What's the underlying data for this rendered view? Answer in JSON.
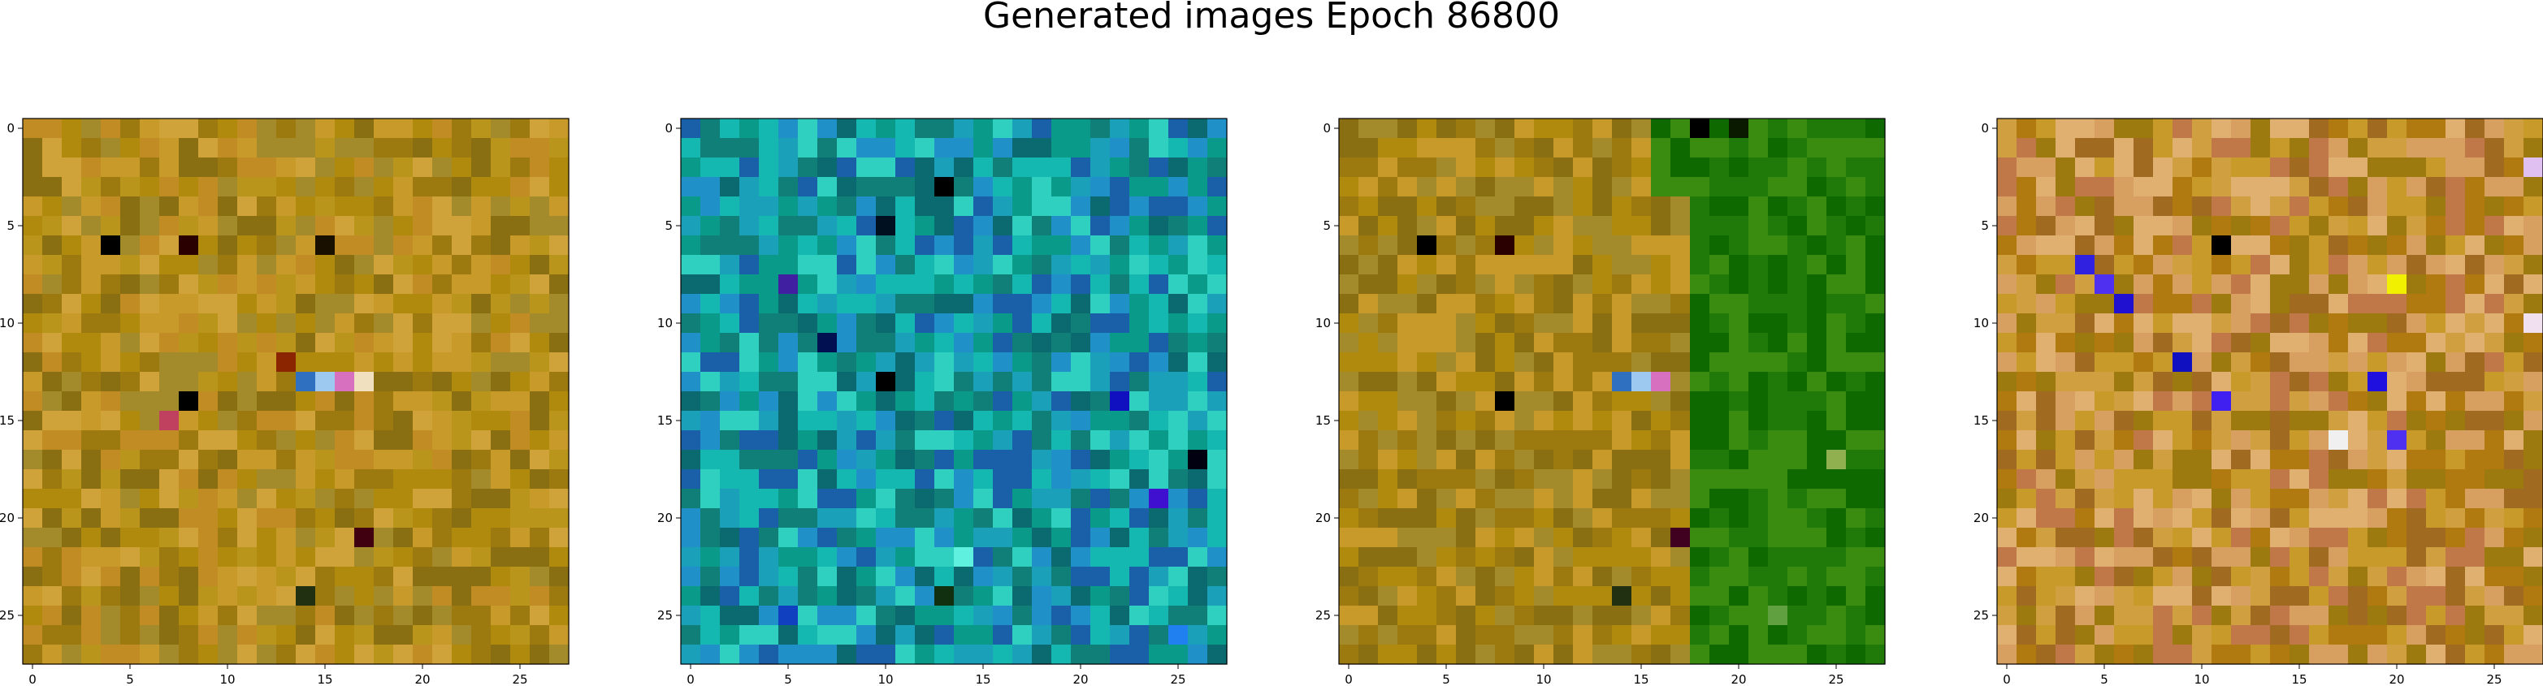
{
  "figure": {
    "title": "Generated images Epoch 86800"
  },
  "chart_data": [
    {
      "type": "heatmap",
      "grid": [
        28,
        28
      ],
      "xticks": [
        "0",
        "5",
        "10",
        "15",
        "20",
        "25"
      ],
      "yticks": [
        "0",
        "5",
        "10",
        "15",
        "20",
        "25"
      ],
      "xlim": [
        -0.5,
        27.5
      ],
      "ylim": [
        27.5,
        -0.5
      ],
      "palette": [
        "#b08a0c",
        "#9c7a10",
        "#c89a2a",
        "#a38a2a",
        "#d0a33a",
        "#8a6e12",
        "#b9951c",
        "#c18c24"
      ],
      "accents": [
        {
          "r": 6,
          "c": 4,
          "color": "#000000"
        },
        {
          "r": 6,
          "c": 8,
          "color": "#2a0000"
        },
        {
          "r": 6,
          "c": 15,
          "color": "#1a1000"
        },
        {
          "r": 12,
          "c": 13,
          "color": "#8b2500"
        },
        {
          "r": 13,
          "c": 14,
          "color": "#3070c0"
        },
        {
          "r": 13,
          "c": 15,
          "color": "#9dc8f0"
        },
        {
          "r": 13,
          "c": 16,
          "color": "#d870c0"
        },
        {
          "r": 13,
          "c": 17,
          "color": "#f0e0c0"
        },
        {
          "r": 14,
          "c": 8,
          "color": "#000000"
        },
        {
          "r": 15,
          "c": 7,
          "color": "#c04060"
        },
        {
          "r": 21,
          "c": 17,
          "color": "#400010"
        },
        {
          "r": 24,
          "c": 14,
          "color": "#203010"
        }
      ]
    },
    {
      "type": "heatmap",
      "grid": [
        28,
        28
      ],
      "xticks": [
        "0",
        "5",
        "10",
        "15",
        "20",
        "25"
      ],
      "yticks": [
        "0",
        "5",
        "10",
        "15",
        "20",
        "25"
      ],
      "xlim": [
        -0.5,
        27.5
      ],
      "ylim": [
        27.5,
        -0.5
      ],
      "palette": [
        "#0a9a8a",
        "#1aa0b8",
        "#0f7f78",
        "#15b8b0",
        "#2090c8",
        "#0a6a70",
        "#30d0c0",
        "#1a60a8"
      ],
      "accents": [
        {
          "r": 3,
          "c": 13,
          "color": "#000000"
        },
        {
          "r": 5,
          "c": 10,
          "color": "#001020"
        },
        {
          "r": 8,
          "c": 5,
          "color": "#4020a0"
        },
        {
          "r": 11,
          "c": 7,
          "color": "#001050"
        },
        {
          "r": 13,
          "c": 10,
          "color": "#000000"
        },
        {
          "r": 14,
          "c": 22,
          "color": "#1010c0"
        },
        {
          "r": 17,
          "c": 26,
          "color": "#000010"
        },
        {
          "r": 19,
          "c": 24,
          "color": "#4010d0"
        },
        {
          "r": 22,
          "c": 14,
          "color": "#60f0e0"
        },
        {
          "r": 24,
          "c": 13,
          "color": "#103010"
        },
        {
          "r": 25,
          "c": 5,
          "color": "#1040c0"
        },
        {
          "r": 26,
          "c": 25,
          "color": "#2080f0"
        }
      ]
    },
    {
      "type": "heatmap",
      "grid": [
        28,
        28
      ],
      "xticks": [
        "0",
        "5",
        "10",
        "15",
        "20",
        "25"
      ],
      "yticks": [
        "0",
        "5",
        "10",
        "15",
        "20",
        "25"
      ],
      "xlim": [
        -0.5,
        27.5
      ],
      "ylim": [
        27.5,
        -0.5
      ],
      "palette": [
        "#b08a0c",
        "#9c7a10",
        "#c89a2a",
        "#a38a2a",
        "#8a6e12",
        "#1f7a0a",
        "#0e6a00",
        "#3a8c10"
      ],
      "accents": [
        {
          "r": 0,
          "c": 18,
          "color": "#000000"
        },
        {
          "r": 0,
          "c": 20,
          "color": "#0a1a00"
        },
        {
          "r": 6,
          "c": 4,
          "color": "#000000"
        },
        {
          "r": 6,
          "c": 8,
          "color": "#2a0000"
        },
        {
          "r": 13,
          "c": 14,
          "color": "#3070c0"
        },
        {
          "r": 13,
          "c": 15,
          "color": "#9dc8f0"
        },
        {
          "r": 13,
          "c": 16,
          "color": "#d870c0"
        },
        {
          "r": 14,
          "c": 8,
          "color": "#000000"
        },
        {
          "r": 21,
          "c": 17,
          "color": "#400020"
        },
        {
          "r": 24,
          "c": 14,
          "color": "#203010"
        },
        {
          "r": 25,
          "c": 22,
          "color": "#60a040"
        },
        {
          "r": 17,
          "c": 25,
          "color": "#90b050"
        }
      ]
    },
    {
      "type": "heatmap",
      "grid": [
        28,
        28
      ],
      "xticks": [
        "0",
        "5",
        "10",
        "15",
        "20",
        "25"
      ],
      "yticks": [
        "0",
        "5",
        "10",
        "15",
        "20",
        "25"
      ],
      "xlim": [
        -0.5,
        27.5
      ],
      "ylim": [
        27.5,
        -0.5
      ],
      "palette": [
        "#c89a2a",
        "#b07a10",
        "#d8a060",
        "#a06a20",
        "#e0b070",
        "#9c7a10",
        "#c07848",
        "#d0a040"
      ],
      "accents": [
        {
          "r": 7,
          "c": 4,
          "color": "#3020e0"
        },
        {
          "r": 8,
          "c": 5,
          "color": "#5030f0"
        },
        {
          "r": 9,
          "c": 6,
          "color": "#2010d0"
        },
        {
          "r": 12,
          "c": 9,
          "color": "#1010c0"
        },
        {
          "r": 14,
          "c": 11,
          "color": "#4020f0"
        },
        {
          "r": 13,
          "c": 19,
          "color": "#2010e0"
        },
        {
          "r": 16,
          "c": 17,
          "color": "#f0f0f0"
        },
        {
          "r": 16,
          "c": 20,
          "color": "#5030f0"
        },
        {
          "r": 8,
          "c": 20,
          "color": "#f0f000"
        },
        {
          "r": 6,
          "c": 11,
          "color": "#000000"
        },
        {
          "r": 2,
          "c": 27,
          "color": "#e0c0f0"
        },
        {
          "r": 10,
          "c": 27,
          "color": "#f0e0f0"
        }
      ]
    }
  ]
}
